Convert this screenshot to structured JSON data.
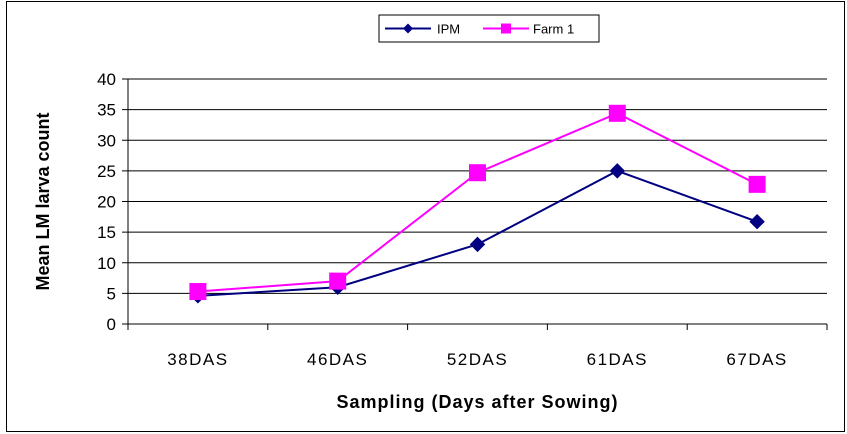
{
  "chart_data": {
    "type": "line",
    "title": "",
    "xlabel": "Sampling (Days after Sowing)",
    "ylabel": "Mean LM larva count",
    "categories": [
      "38DAS",
      "46DAS",
      "52DAS",
      "61DAS",
      "67DAS"
    ],
    "ylim": [
      0,
      40
    ],
    "yticks": [
      0,
      5,
      10,
      15,
      20,
      25,
      30,
      35,
      40
    ],
    "grid": true,
    "legend_position": "top-center",
    "series": [
      {
        "name": "IPM",
        "values": [
          4.6,
          6.0,
          13.0,
          25.0,
          16.7
        ],
        "color": "#000080",
        "marker": "diamond"
      },
      {
        "name": "Farm 1",
        "values": [
          5.3,
          7.0,
          24.7,
          34.4,
          22.8
        ],
        "color": "#ff00ff",
        "marker": "square"
      }
    ]
  }
}
